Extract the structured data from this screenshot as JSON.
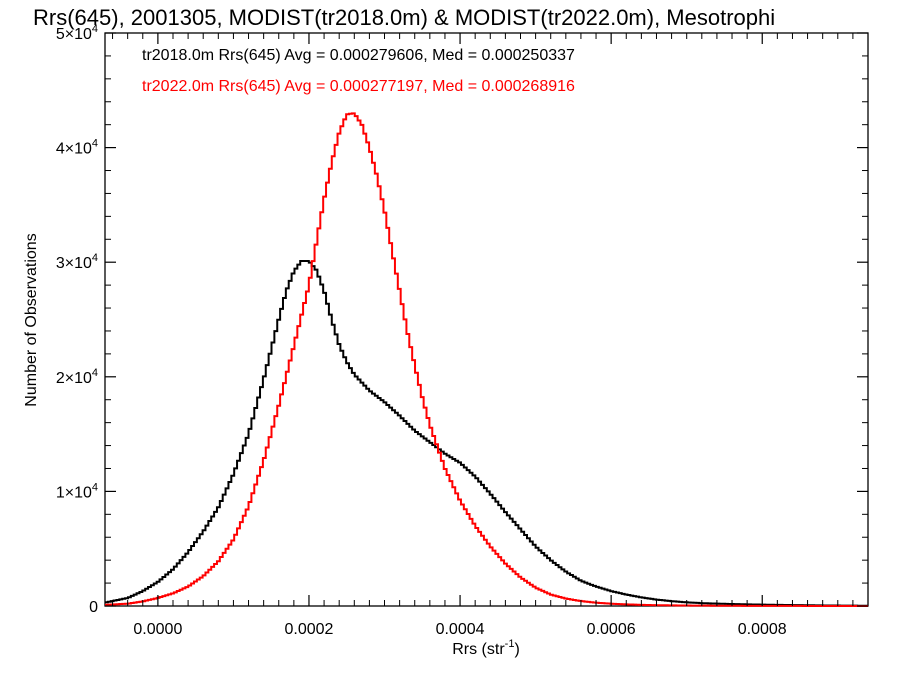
{
  "chart_data": {
    "type": "line",
    "title": "Rrs(645), 2001305, MODIST(tr2018.0m) & MODIST(tr2022.0m), Mesotrophi",
    "xlabel": "Rrs (str",
    "xlabel_sup": "-1",
    "xlabel_suffix": ")",
    "ylabel": "Number of Observations",
    "xlim": [
      -7e-05,
      0.00094
    ],
    "ylim": [
      0,
      50000
    ],
    "x_ticks": [
      0.0,
      0.0002,
      0.0004,
      0.0006,
      0.0008
    ],
    "x_tick_labels": [
      "0.0000",
      "0.0002",
      "0.0004",
      "0.0006",
      "0.0008"
    ],
    "y_ticks": [
      0,
      10000,
      20000,
      30000,
      40000,
      50000
    ],
    "y_tick_labels": [
      {
        "mant": "0",
        "exp": ""
      },
      {
        "mant": "1×10",
        "exp": "4"
      },
      {
        "mant": "2×10",
        "exp": "4"
      },
      {
        "mant": "3×10",
        "exp": "4"
      },
      {
        "mant": "4×10",
        "exp": "4"
      },
      {
        "mant": "5×10",
        "exp": "4"
      }
    ],
    "grid": false,
    "plot_style": "step",
    "series": [
      {
        "color": "#000000",
        "annotation": "tr2018.0m Rrs(645) Avg = 0.000279606, Med = 0.000250337",
        "x": [
          -7e-05,
          -4e-05,
          -2e-05,
          0.0,
          2e-05,
          4e-05,
          6e-05,
          8e-05,
          0.0001,
          0.00012,
          0.00014,
          0.00016,
          0.00017,
          0.00018,
          0.00019,
          0.0002,
          0.00021,
          0.00022,
          0.00023,
          0.00024,
          0.00025,
          0.00026,
          0.00028,
          0.0003,
          0.00032,
          0.00034,
          0.00036,
          0.00038,
          0.0004,
          0.00042,
          0.00044,
          0.00046,
          0.00048,
          0.0005,
          0.00052,
          0.00054,
          0.00056,
          0.00058,
          0.0006,
          0.00062,
          0.00064,
          0.00066,
          0.00068,
          0.0007,
          0.00072,
          0.00076,
          0.0008,
          0.00084,
          0.00088,
          0.00092,
          0.00094
        ],
        "y": [
          300,
          700,
          1300,
          2100,
          3200,
          4700,
          6500,
          8600,
          11500,
          15000,
          19800,
          25000,
          27500,
          29200,
          30100,
          30100,
          29300,
          27500,
          25000,
          22800,
          21300,
          20200,
          18800,
          17800,
          16600,
          15300,
          14300,
          13300,
          12500,
          11300,
          9800,
          8200,
          6700,
          5200,
          4000,
          3000,
          2200,
          1700,
          1300,
          1000,
          750,
          560,
          420,
          320,
          250,
          170,
          120,
          80,
          50,
          30,
          20
        ]
      },
      {
        "color": "#ff0000",
        "annotation": "tr2022.0m Rrs(645) Avg = 0.000277197, Med = 0.000268916",
        "x": [
          -7e-05,
          -4e-05,
          -2e-05,
          0.0,
          2e-05,
          4e-05,
          6e-05,
          8e-05,
          0.0001,
          0.00012,
          0.00014,
          0.00016,
          0.00018,
          0.0002,
          0.00021,
          0.00022,
          0.00023,
          0.00024,
          0.00025,
          0.00026,
          0.00027,
          0.00028,
          0.00029,
          0.0003,
          0.00031,
          0.00032,
          0.00033,
          0.00034,
          0.00035,
          0.00036,
          0.00038,
          0.0004,
          0.00042,
          0.00044,
          0.00046,
          0.00048,
          0.0005,
          0.00052,
          0.00054,
          0.00056,
          0.00058,
          0.0006,
          0.00062,
          0.00064,
          0.00066,
          0.0007,
          0.00074,
          0.00078,
          0.00082,
          0.00086,
          0.0009,
          0.00094
        ],
        "y": [
          100,
          200,
          400,
          700,
          1100,
          1700,
          2600,
          3900,
          5800,
          8700,
          12700,
          17500,
          22700,
          28000,
          31800,
          35500,
          38700,
          41300,
          42900,
          43000,
          42000,
          40000,
          37500,
          34500,
          31000,
          27500,
          24000,
          21000,
          18200,
          15800,
          12000,
          9200,
          7000,
          5200,
          3700,
          2500,
          1600,
          1000,
          650,
          430,
          290,
          200,
          140,
          100,
          70,
          40,
          25,
          15,
          10,
          5,
          3,
          2
        ]
      }
    ]
  }
}
